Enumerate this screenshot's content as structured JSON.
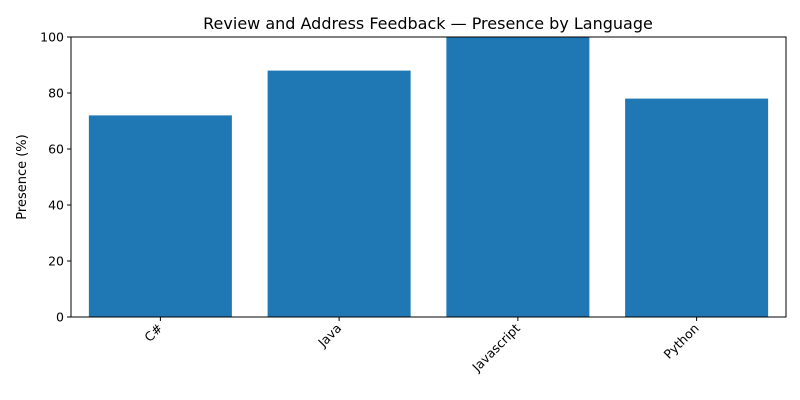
{
  "chart_data": {
    "type": "bar",
    "title": "Review and Address Feedback — Presence by Language",
    "xlabel": "",
    "ylabel": "Presence (%)",
    "categories": [
      "C#",
      "Java",
      "Javascript",
      "Python"
    ],
    "values": [
      72,
      88,
      100,
      78
    ],
    "ylim": [
      0,
      100
    ],
    "yticks": [
      0,
      20,
      40,
      60,
      80,
      100
    ],
    "grid": false,
    "legend": "none",
    "bar_color": "#1f77b4"
  }
}
